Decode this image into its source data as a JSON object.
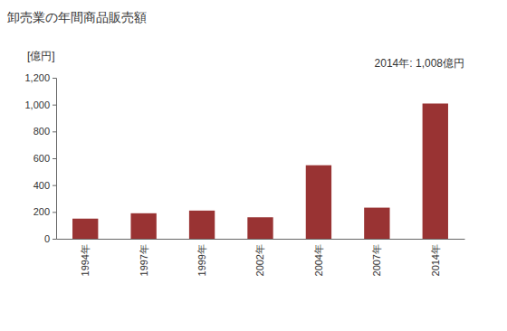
{
  "chart_data": {
    "type": "bar",
    "title": "卸売業の年間商品販売額",
    "y_label": "[億円]",
    "annotation": "2014年: 1,008億円",
    "categories": [
      "1994年",
      "1997年",
      "1999年",
      "2002年",
      "2004年",
      "2007年",
      "2014年"
    ],
    "values": [
      150,
      190,
      210,
      160,
      548,
      232,
      1008
    ],
    "color": "#993333",
    "ylim": [
      0,
      1200
    ],
    "yticks": [
      0,
      200,
      400,
      600,
      800,
      {
        "value": 1000,
        "label": "1,000"
      },
      {
        "value": 1200,
        "label": "1,200"
      }
    ],
    "grid": false
  }
}
